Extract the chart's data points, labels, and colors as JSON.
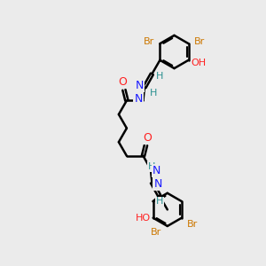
{
  "background_color": "#ebebeb",
  "bond_color": "black",
  "bond_width": 1.8,
  "font_size": 8,
  "N_color": "#1a1aff",
  "O_color": "#ff2020",
  "Br_color": "#cc7700",
  "H_color": "#2a9090",
  "figsize": [
    3.0,
    3.0
  ],
  "dpi": 100,
  "xlim": [
    0,
    10
  ],
  "ylim": [
    0,
    10
  ]
}
